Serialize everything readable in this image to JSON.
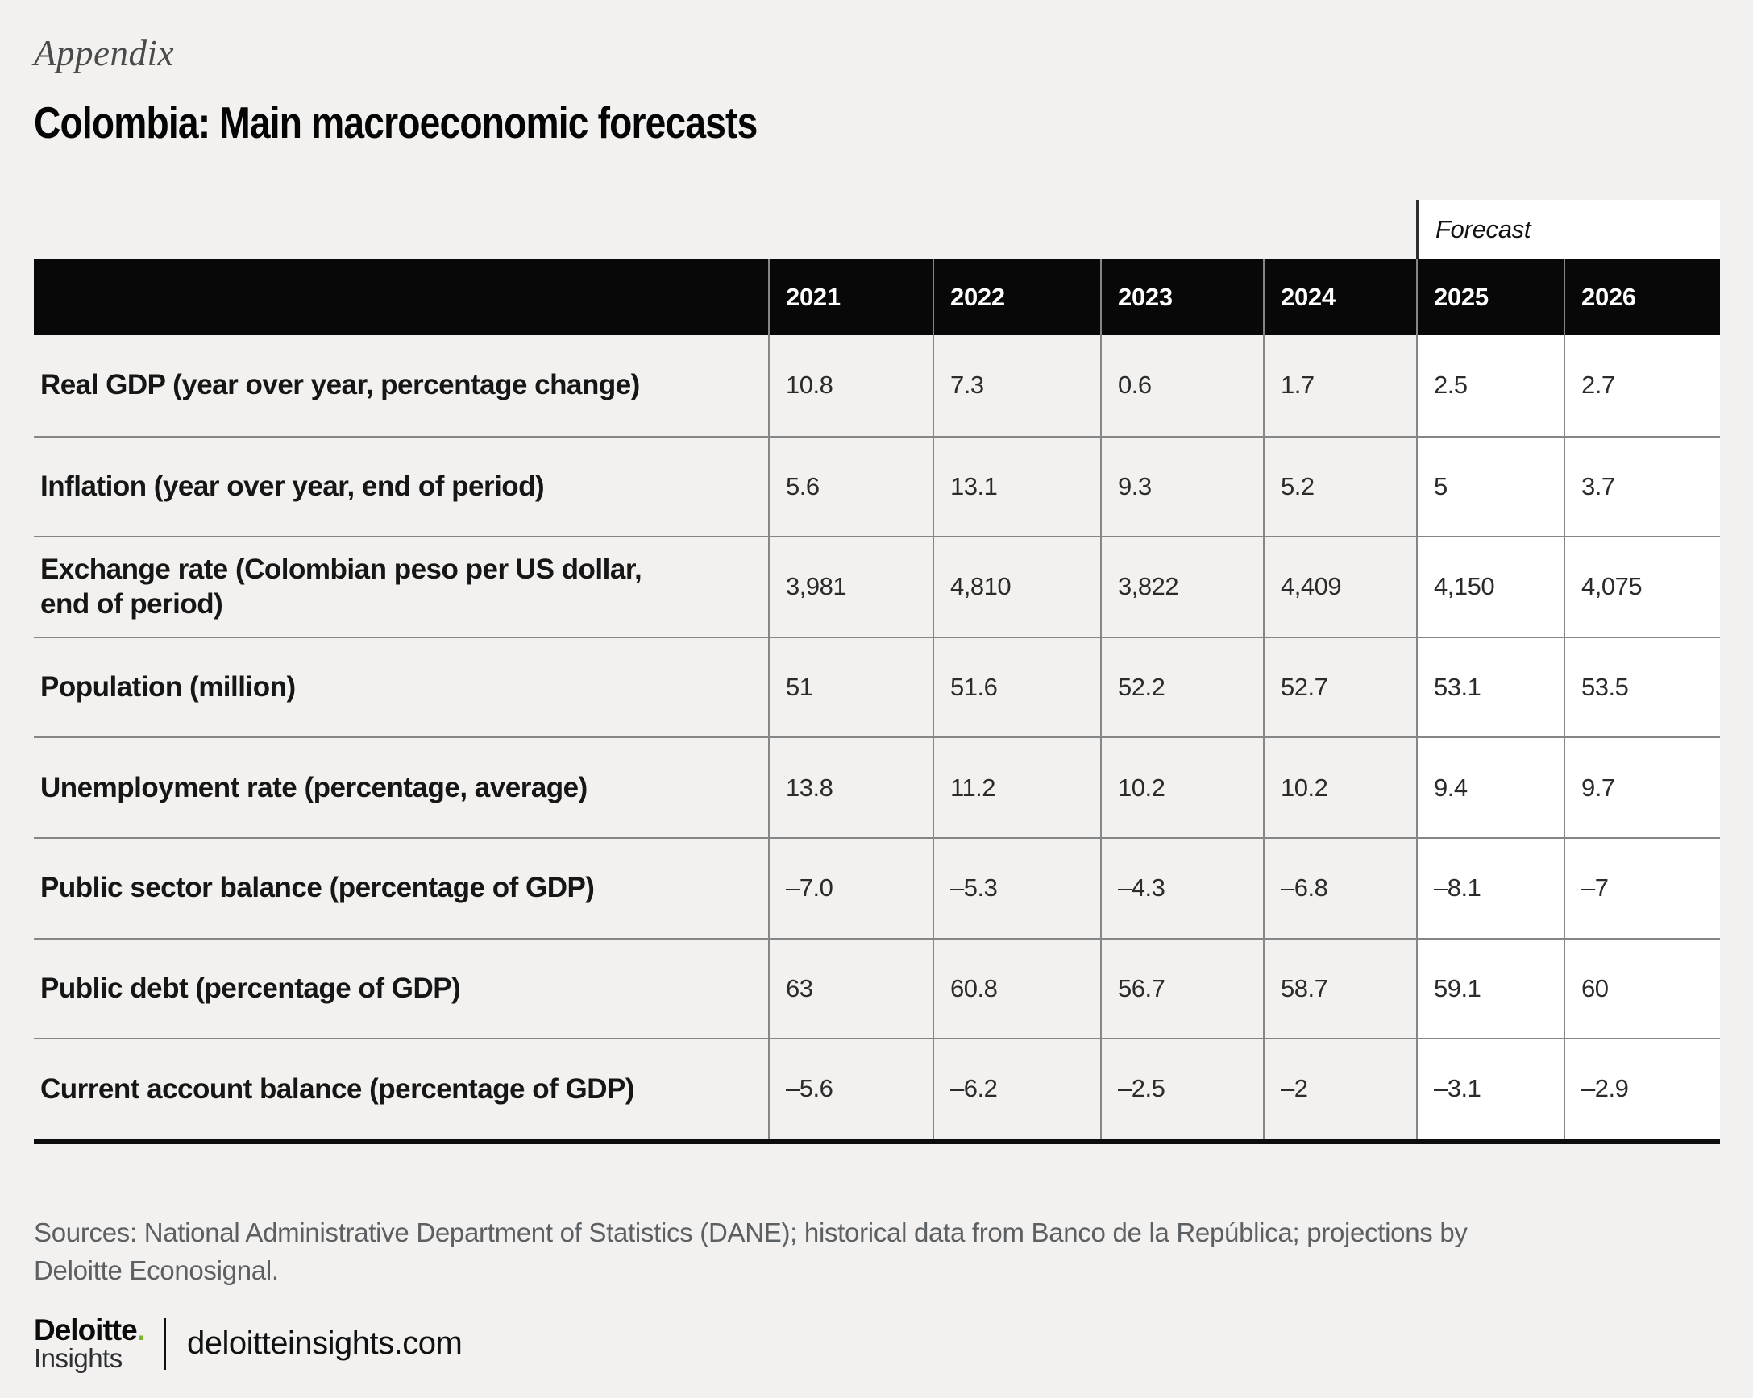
{
  "appendix_label": "Appendix",
  "title": "Colombia: Main macroeconomic forecasts",
  "table": {
    "forecast_label": "Forecast",
    "years": [
      "2021",
      "2022",
      "2023",
      "2024",
      "2025",
      "2026"
    ],
    "forecast_year_count": 2,
    "rows": [
      {
        "label": "Real GDP (year over year, percentage change)",
        "values": [
          "10.8",
          "7.3",
          "0.6",
          "1.7",
          "2.5",
          "2.7"
        ]
      },
      {
        "label": "Inflation (year over year, end of period)",
        "values": [
          "5.6",
          "13.1",
          "9.3",
          "5.2",
          "5",
          "3.7"
        ]
      },
      {
        "label": "Exchange rate (Colombian peso per US dollar,\nend of period)",
        "values": [
          "3,981",
          "4,810",
          "3,822",
          "4,409",
          "4,150",
          "4,075"
        ]
      },
      {
        "label": "Population (million)",
        "values": [
          "51",
          "51.6",
          "52.2",
          "52.7",
          "53.1",
          "53.5"
        ]
      },
      {
        "label": "Unemployment rate (percentage, average)",
        "values": [
          "13.8",
          "11.2",
          "10.2",
          "10.2",
          "9.4",
          "9.7"
        ]
      },
      {
        "label": "Public sector balance (percentage of GDP)",
        "values": [
          "–7.0",
          "–5.3",
          "–4.3",
          "–6.8",
          "–8.1",
          "–7"
        ]
      },
      {
        "label": "Public debt (percentage of GDP)",
        "values": [
          "63",
          "60.8",
          "56.7",
          "58.7",
          "59.1",
          "60"
        ]
      },
      {
        "label": "Current account balance (percentage of GDP)",
        "values": [
          "–5.6",
          "–6.2",
          "–2.5",
          "–2",
          "–3.1",
          "–2.9"
        ]
      }
    ]
  },
  "sources": {
    "line1": "Sources: National Administrative Department of Statistics (DANE); historical data from Banco de la República; projections by",
    "line2": "Deloitte Econosignal."
  },
  "footer": {
    "brand": "Deloitte",
    "brand_dot": ".",
    "brand_sub": "Insights",
    "site": "deloitteinsights.com"
  },
  "colors": {
    "page_background": "#f2f1ef",
    "header_background": "#080808",
    "forecast_background": "#ffffff",
    "grid_line": "#868686",
    "accent_green": "#77b52c"
  }
}
